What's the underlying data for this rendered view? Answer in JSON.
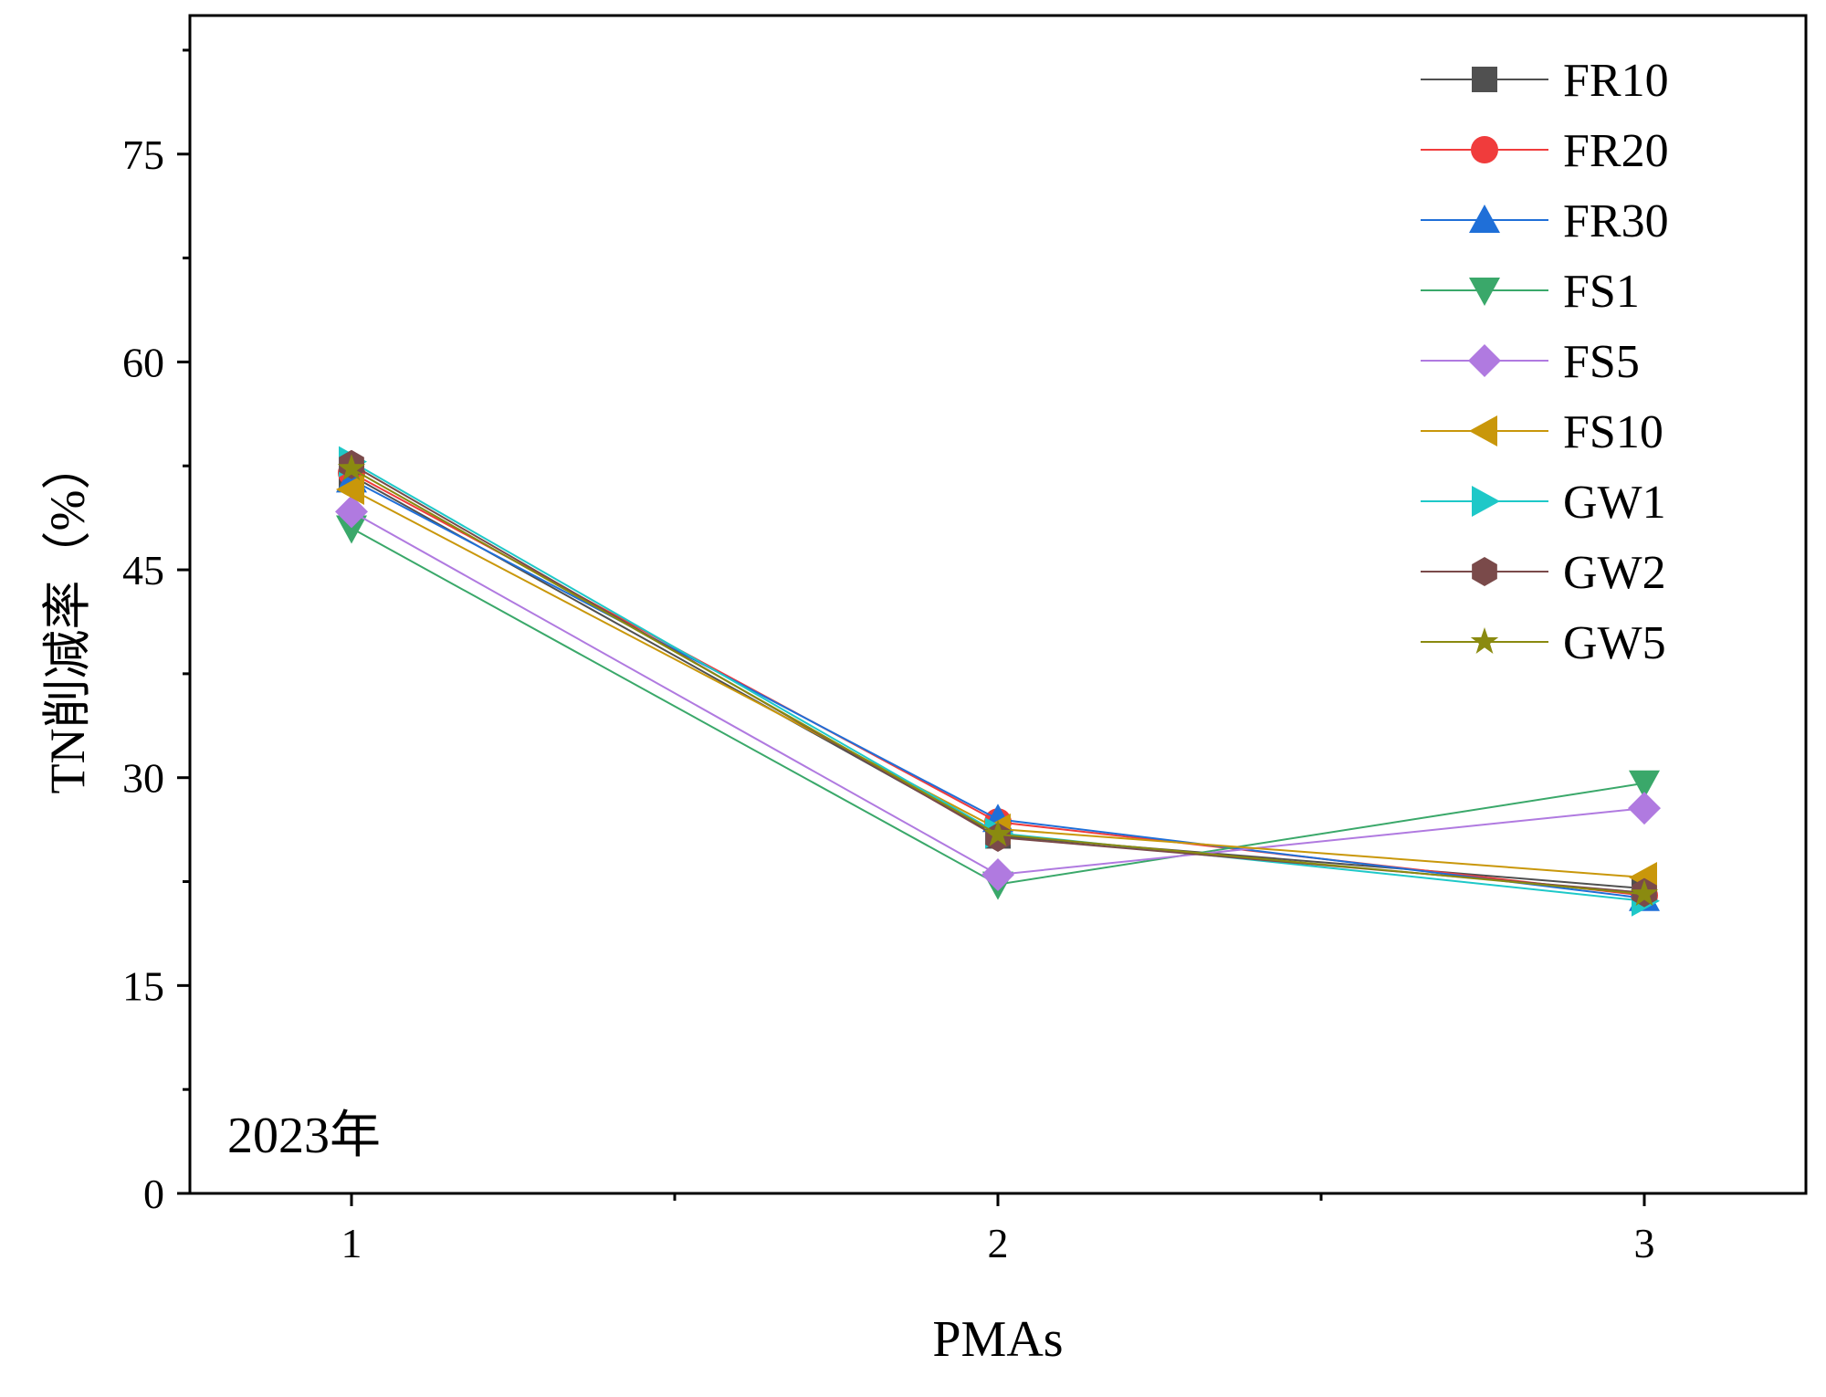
{
  "chart_data": {
    "type": "line",
    "title": "",
    "annotation": "2023年",
    "xlabel": "PMAs",
    "ylabel": "TN削减率（%）",
    "x": [
      1,
      2,
      3
    ],
    "x_ticks": [
      "1",
      "2",
      "3"
    ],
    "y_ticks": [
      "0",
      "15",
      "30",
      "45",
      "60",
      "75"
    ],
    "xlim": [
      0.75,
      3.25
    ],
    "ylim": [
      0,
      85
    ],
    "grid": false,
    "legend_position": "top-right",
    "series": [
      {
        "name": "FR10",
        "marker": "square",
        "color": "#505050",
        "values": [
          51.8,
          25.8,
          22.0
        ]
      },
      {
        "name": "FR20",
        "marker": "circle",
        "color": "#f03c3c",
        "values": [
          52.0,
          26.8,
          21.5
        ]
      },
      {
        "name": "FR30",
        "marker": "triangle-up",
        "color": "#1f6fd8",
        "values": [
          51.5,
          27.0,
          21.3
        ]
      },
      {
        "name": "FS1",
        "marker": "triangle-down",
        "color": "#3aa86a",
        "values": [
          48.0,
          22.3,
          29.6
        ]
      },
      {
        "name": "FS5",
        "marker": "diamond",
        "color": "#b07ae0",
        "values": [
          49.2,
          23.0,
          27.8
        ]
      },
      {
        "name": "FS10",
        "marker": "triangle-left",
        "color": "#c9970a",
        "values": [
          50.8,
          26.3,
          22.8
        ]
      },
      {
        "name": "GW1",
        "marker": "triangle-right",
        "color": "#1ec8c8",
        "values": [
          52.8,
          26.0,
          21.1
        ]
      },
      {
        "name": "GW2",
        "marker": "hexagon",
        "color": "#7a4a4a",
        "values": [
          52.6,
          25.7,
          21.7
        ]
      },
      {
        "name": "GW5",
        "marker": "star",
        "color": "#8a8a10",
        "values": [
          52.3,
          25.9,
          21.6
        ]
      }
    ]
  }
}
